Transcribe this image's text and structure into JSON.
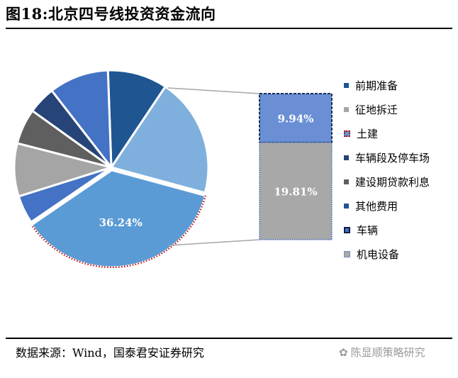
{
  "title": "图18:北京四号线投资资金流向",
  "source": "数据来源：Wind，国泰君安证券研究",
  "watermark": "陈显顺策略研究",
  "chart_data": {
    "type": "pie",
    "title": "图18:北京四号线投资资金流向",
    "slices": [
      {
        "name": "前期准备",
        "value": 9.94,
        "color": "#1f5591",
        "label": ""
      },
      {
        "name": "征地拆迁",
        "value": 19.81,
        "color": "#7fb0dd",
        "label": ""
      },
      {
        "name": "土建",
        "value": 36.24,
        "color": "#5b9bd5",
        "label": "36.24%"
      },
      {
        "name": "车辆段及停车场",
        "value": 4.7,
        "color": "#4472c4",
        "label": ""
      },
      {
        "name": "建设期贷款利息",
        "value": 8.81,
        "color": "#a5a5a5",
        "label": ""
      },
      {
        "name": "其他费用",
        "value": 5.9,
        "color": "#5f5f5f",
        "label": ""
      },
      {
        "name": "车辆",
        "value": 4.6,
        "color": "#264478",
        "label": ""
      },
      {
        "name": "机电设备",
        "value": 9.94,
        "color": "#4472c4",
        "label": ""
      }
    ],
    "bar_of_pie": [
      {
        "value": 9.94,
        "label": "9.94%",
        "color": "#6a8fd4"
      },
      {
        "value": 19.81,
        "label": "19.81%",
        "color": "#a8a8a8"
      }
    ],
    "legend": {
      "position": "right",
      "items": [
        {
          "name": "前期准备",
          "color": "#1f5591",
          "style": "plain"
        },
        {
          "name": "征地拆迁",
          "color": "#a5a5a5",
          "style": "plain"
        },
        {
          "name": "土建",
          "color": "#5b9bd5",
          "style": "dotted"
        },
        {
          "name": "车辆段及停车场",
          "color": "#264478",
          "style": "plain"
        },
        {
          "name": "建设期贷款利息",
          "color": "#5f5f5f",
          "style": "plain"
        },
        {
          "name": "其他费用",
          "color": "#1f5591",
          "style": "plain"
        },
        {
          "name": "车辆",
          "color": "#264478",
          "style": "dashed"
        },
        {
          "name": "机电设备",
          "color": "#8aaedc",
          "style": "bordered"
        }
      ]
    }
  }
}
